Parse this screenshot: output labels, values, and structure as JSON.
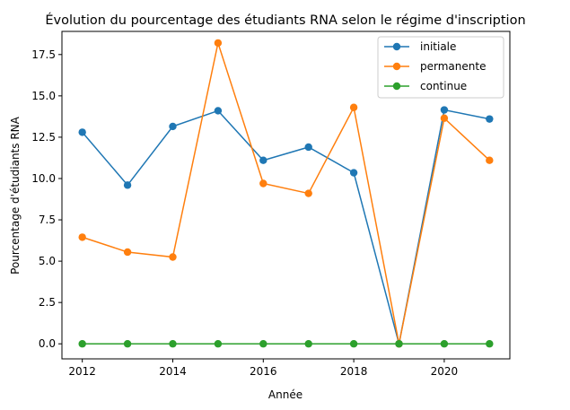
{
  "chart_data": {
    "type": "line",
    "title": "Évolution du pourcentage des étudiants RNA selon le régime d'inscription",
    "xlabel": "Année",
    "ylabel": "Pourcentage d'étudiants RNA",
    "x": [
      2012,
      2013,
      2014,
      2015,
      2016,
      2017,
      2018,
      2019,
      2020,
      2021
    ],
    "xlim": [
      2011.55,
      2021.45
    ],
    "ylim": [
      -0.91,
      18.9
    ],
    "xticks": [
      2012,
      2014,
      2016,
      2018,
      2020
    ],
    "xtick_labels": [
      "2012",
      "2014",
      "2016",
      "2018",
      "2020"
    ],
    "yticks": [
      0,
      2.5,
      5,
      7.5,
      10,
      12.5,
      15,
      17.5
    ],
    "ytick_labels": [
      "0.0",
      "2.5",
      "5.0",
      "7.5",
      "10.0",
      "12.5",
      "15.0",
      "17.5"
    ],
    "grid": false,
    "legend_position": "top-right",
    "series": [
      {
        "name": "initiale",
        "color": "#1f77b4",
        "values": [
          12.8,
          9.6,
          13.15,
          14.1,
          11.1,
          11.9,
          10.35,
          0.0,
          14.15,
          13.6
        ]
      },
      {
        "name": "permanente",
        "color": "#ff7f0e",
        "values": [
          6.45,
          5.55,
          5.25,
          18.2,
          9.7,
          9.1,
          14.3,
          0.0,
          13.65,
          11.1
        ]
      },
      {
        "name": "continue",
        "color": "#2ca02c",
        "values": [
          0,
          0,
          0,
          0,
          0,
          0,
          0,
          0,
          0,
          0
        ]
      }
    ]
  }
}
